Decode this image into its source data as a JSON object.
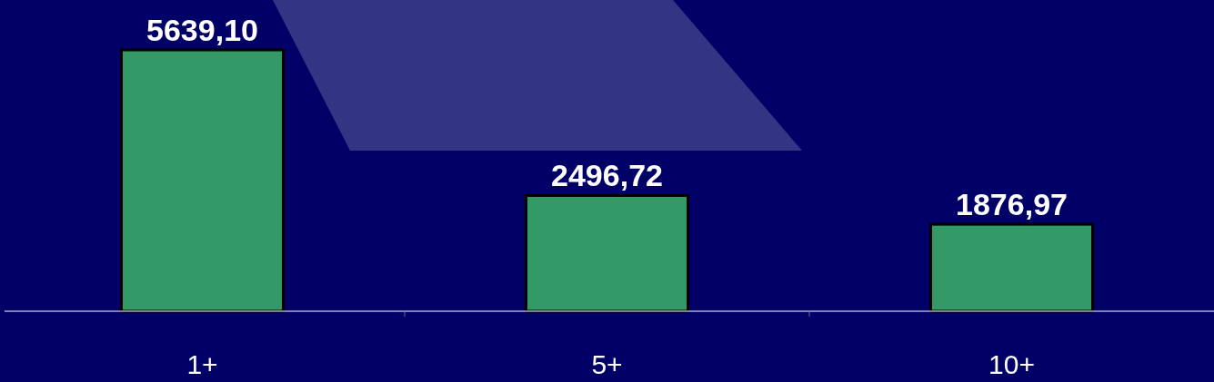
{
  "chart_data": {
    "type": "bar",
    "categories": [
      "1+",
      "5+",
      "10+"
    ],
    "values": [
      5639.1,
      2496.72,
      1876.97
    ],
    "value_labels": [
      "5639,10",
      "2496,72",
      "1876,97"
    ],
    "color": "#339966"
  }
}
